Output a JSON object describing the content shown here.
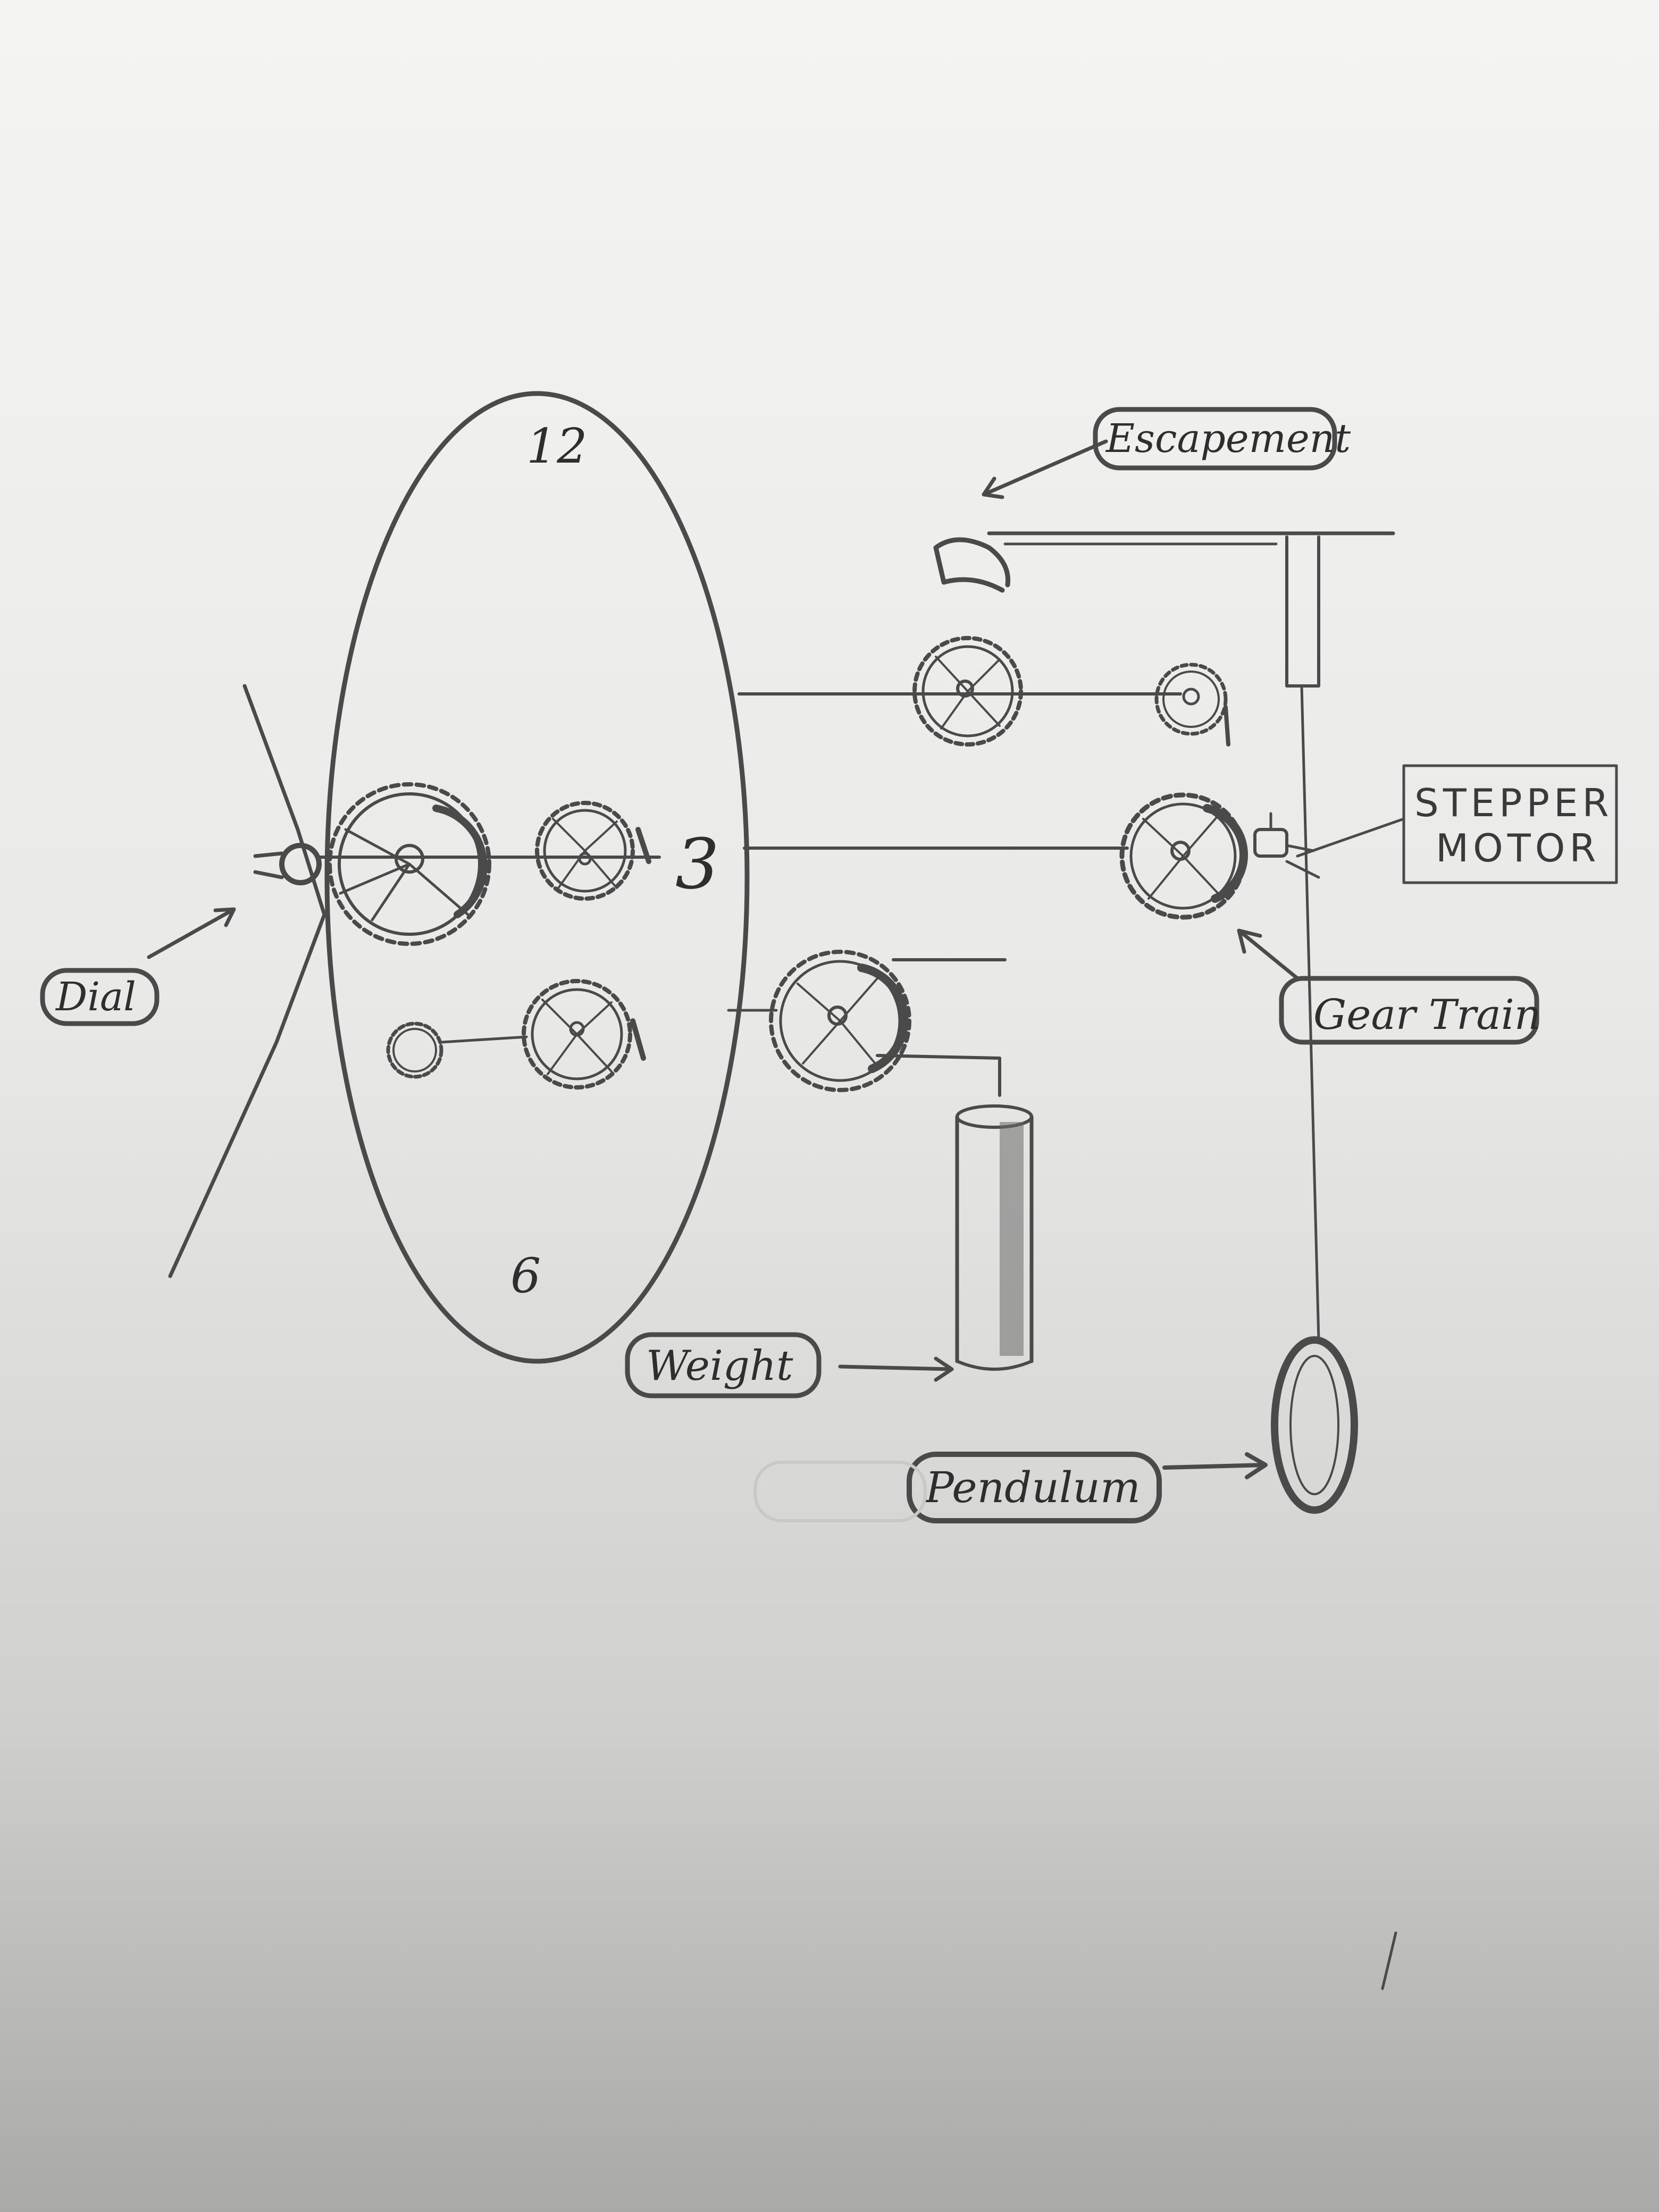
{
  "diagram": {
    "dial_numbers": {
      "twelve": "12",
      "three": "3",
      "six": "6"
    },
    "labels": {
      "escapement": "Escapement",
      "stepper_motor_line1": "STEPPER",
      "stepper_motor_line2": "MOTOR",
      "gear_train": "Gear Train",
      "dial": "Dial",
      "weight": "Weight",
      "pendulum": "Pendulum"
    }
  },
  "colors": {
    "pencil": "#4a4a4a",
    "graphite_dark": "#2e2e2e",
    "paper": "#efefed"
  }
}
